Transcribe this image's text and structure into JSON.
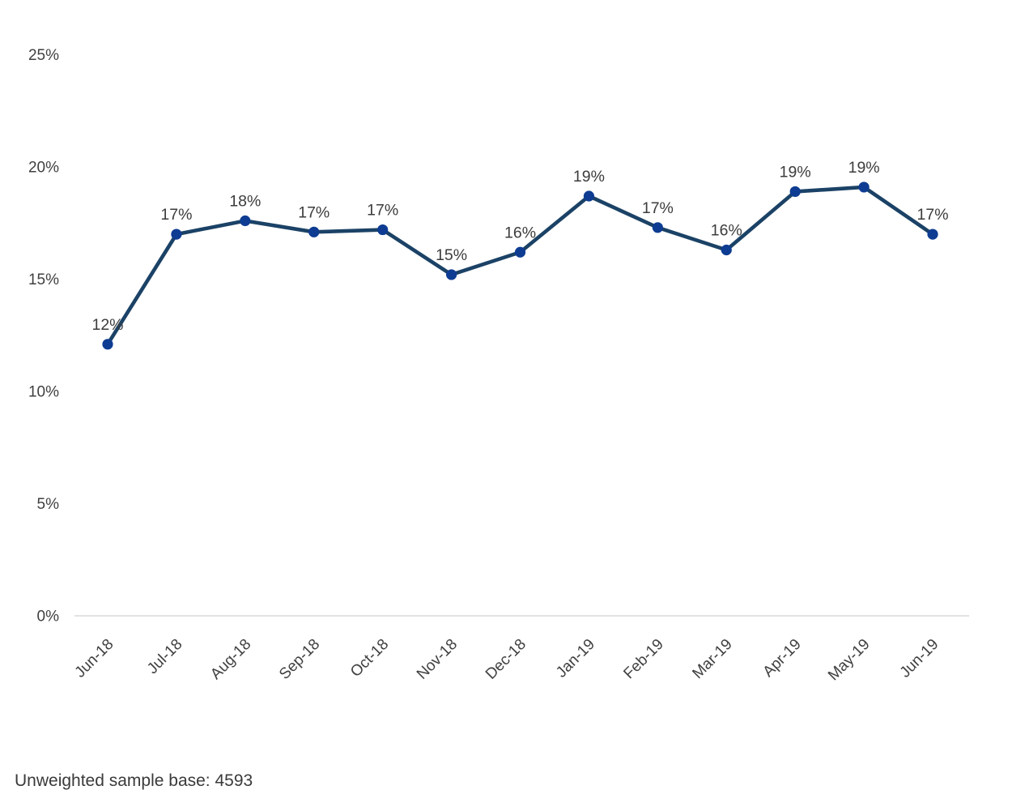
{
  "chart_data": {
    "type": "line",
    "title": "",
    "xlabel": "",
    "ylabel": "",
    "categories": [
      "Jun-18",
      "Jul-18",
      "Aug-18",
      "Sep-18",
      "Oct-18",
      "Nov-18",
      "Dec-18",
      "Jan-19",
      "Feb-19",
      "Mar-19",
      "Apr-19",
      "May-19",
      "Jun-19"
    ],
    "series": [
      {
        "name": "percent",
        "values": [
          12,
          17,
          18,
          17,
          17,
          15,
          16,
          19,
          17,
          16,
          19,
          19,
          17
        ],
        "plot_values": [
          12.1,
          17.0,
          17.6,
          17.1,
          17.2,
          15.2,
          16.2,
          18.7,
          17.3,
          16.3,
          18.9,
          19.1,
          17.0
        ],
        "point_labels": [
          "12%",
          "17%",
          "18%",
          "17%",
          "17%",
          "15%",
          "16%",
          "19%",
          "17%",
          "16%",
          "19%",
          "19%",
          "17%"
        ]
      }
    ],
    "ylim": [
      0,
      25
    ],
    "y_tick_values": [
      0,
      5,
      10,
      15,
      20,
      25
    ],
    "y_tick_labels": [
      "0%",
      "5%",
      "10%",
      "15%",
      "20%",
      "25%"
    ],
    "grid": false,
    "legend_position": "none",
    "colors": {
      "line": "#1b4266",
      "marker": "#0d3c92",
      "axis_line": "#d9d9d9",
      "tick_text": "#404040",
      "data_label_text": "#3c3c3c"
    }
  },
  "note": {
    "text": "Unweighted sample base: 4593"
  }
}
